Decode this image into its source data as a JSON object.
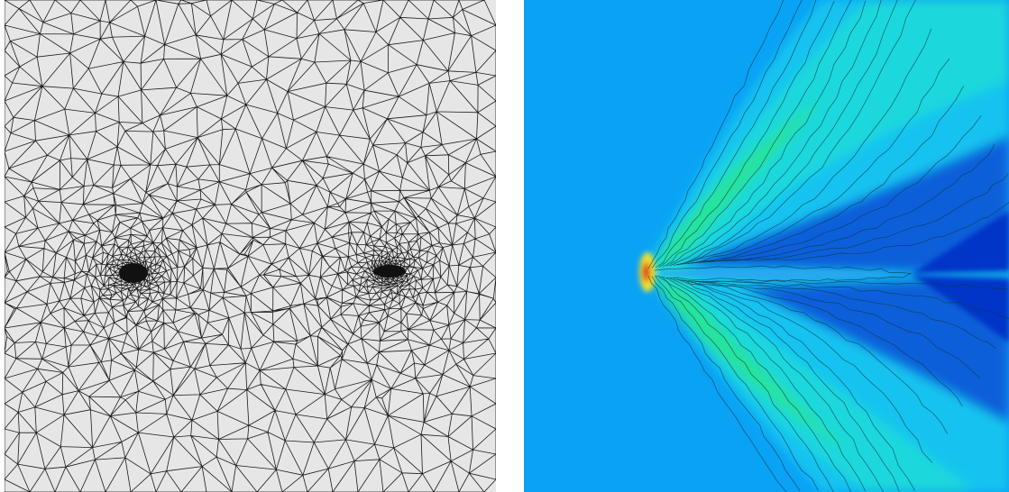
{
  "figure": {
    "panels": [
      {
        "id": "mesh",
        "content": "triangular-finite-element-mesh",
        "background_color": "#e6e6e6",
        "edge_color": "#1a1a1a",
        "refinement_zones": [
          {
            "name": "left-refinement-zone",
            "density": "very-high"
          },
          {
            "name": "right-refinement-zone",
            "density": "very-high"
          }
        ]
      },
      {
        "id": "field",
        "content": "filled-contour-plot",
        "colormap": "jet",
        "background_color": "#0aa2f5",
        "contour_line_color": "#0a3a4a",
        "features": [
          {
            "name": "bow-shaped-front",
            "peak_color": "#d62b1a"
          },
          {
            "name": "wake-centerline"
          }
        ]
      }
    ]
  }
}
